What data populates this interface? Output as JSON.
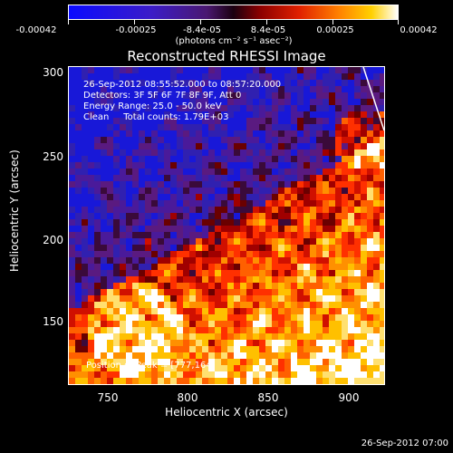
{
  "colorbar": {
    "tick_labels": [
      "-0.00042",
      "-0.00025",
      "-8.4e-05",
      "8.4e-05",
      "0.00025",
      "0.00042"
    ],
    "unit_label": "(photons cm⁻² s⁻¹ asec⁻²)"
  },
  "chart_data": {
    "type": "heatmap",
    "title": "Reconstructed RHESSI Image",
    "xlabel": "Heliocentric X (arcsec)",
    "ylabel": "Heliocentric Y (arcsec)",
    "xlim": [
      728,
      920
    ],
    "ylim": [
      110,
      303
    ],
    "x_ticks": [
      "750",
      "800",
      "850",
      "900"
    ],
    "y_ticks": [
      "150",
      "200",
      "250",
      "300"
    ],
    "color_range": [
      -0.00042,
      0.00042
    ],
    "colormap": "blue-purple-red-orange-yellow-white",
    "annotations": [
      "26-Sep-2012 08:55:52.000 to 08:57:20.000",
      "Detectors: 3F 5F 6F 7F 8F 9F, Att 0",
      "Energy Range: 25.0 - 50.0 keV",
      "Clean     Total counts: 1.79E+03"
    ],
    "peak_label": "Position of Peak = [777,164]",
    "peak": [
      777,
      164
    ]
  },
  "footer": {
    "timestamp": "26-Sep-2012 07:00"
  }
}
